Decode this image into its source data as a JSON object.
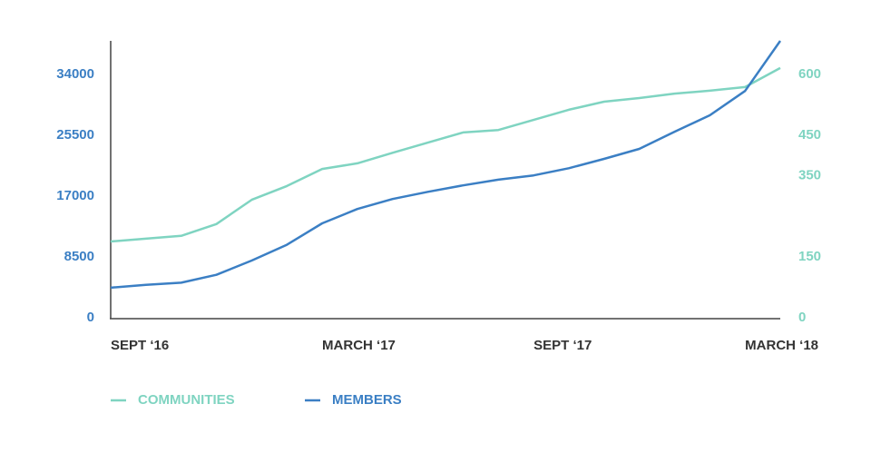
{
  "chart_data": {
    "type": "line",
    "categories": [
      "SEPT ‘16",
      null,
      null,
      null,
      null,
      null,
      "MARCH ‘17",
      null,
      null,
      null,
      null,
      null,
      "SEPT ‘17",
      null,
      null,
      null,
      null,
      null,
      "MARCH ‘18",
      null
    ],
    "series": [
      {
        "name": "COMMUNITIES",
        "color": "#7fd4c1",
        "axis": "y2",
        "values": [
          188,
          195,
          202,
          231,
          291,
          325,
          367,
          381,
          407,
          432,
          457,
          463,
          488,
          513,
          533,
          542,
          553,
          560,
          569,
          616
        ]
      },
      {
        "name": "MEMBERS",
        "color": "#3b7fc4",
        "values": [
          4200,
          4600,
          4900,
          6000,
          8000,
          10200,
          13200,
          15200,
          16600,
          17600,
          18500,
          19300,
          19900,
          20900,
          22200,
          23600,
          26000,
          28300,
          31700,
          38700
        ]
      }
    ],
    "ylim": [
      0,
      38700
    ],
    "yticks": [
      0,
      8500,
      17000,
      25500,
      34000
    ],
    "y2lim": [
      0,
      683
    ],
    "y2ticks": [
      0,
      150,
      350,
      450,
      600
    ],
    "legend": "bottom-left"
  }
}
